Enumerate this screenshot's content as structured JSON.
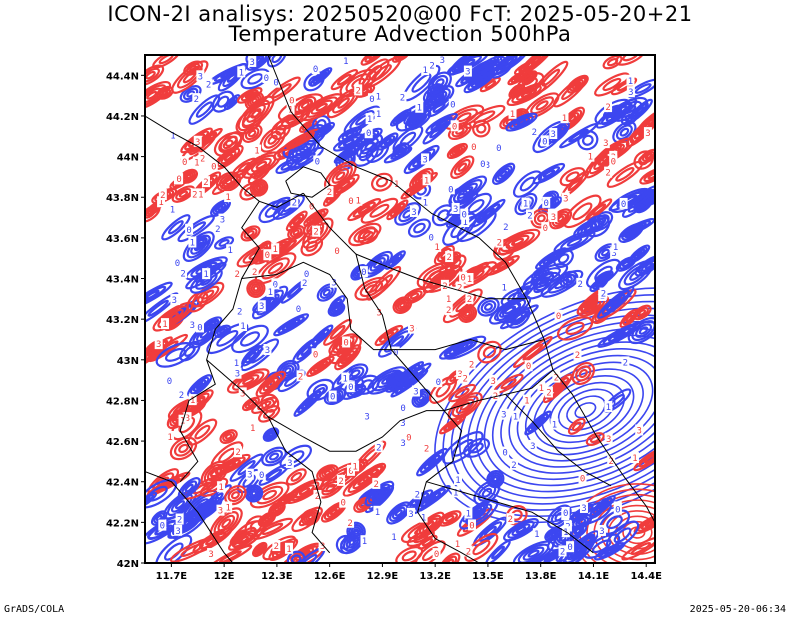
{
  "title": {
    "line1": "ICON-2I analisys: 20250520@00 FcT: 2025-05-20+21",
    "line2": "Temperature Advection 500hPa"
  },
  "map": {
    "lon_range": [
      11.55,
      14.45
    ],
    "lat_range": [
      42.0,
      44.5
    ],
    "lat_ticks": [
      "44.4N",
      "44.2N",
      "44N",
      "43.8N",
      "43.6N",
      "43.4N",
      "43.2N",
      "43N",
      "42.8N",
      "42.6N",
      "42.4N",
      "42.2N",
      "42N"
    ],
    "lat_tick_values": [
      44.4,
      44.2,
      44.0,
      43.8,
      43.6,
      43.4,
      43.2,
      43.0,
      42.8,
      42.6,
      42.4,
      42.2,
      42.0
    ],
    "lon_ticks": [
      "11.7E",
      "12E",
      "12.3E",
      "12.6E",
      "12.9E",
      "13.2E",
      "13.5E",
      "13.8E",
      "14.1E",
      "14.4E"
    ],
    "lon_tick_values": [
      11.7,
      12.0,
      12.3,
      12.6,
      12.9,
      13.2,
      13.5,
      13.8,
      14.1,
      14.4
    ],
    "colors": {
      "warm_advection": "#f03c3c",
      "cold_advection": "#3c46f0",
      "border": "#000000",
      "background": "#ffffff"
    },
    "contour_label_samples": [
      "0",
      "1",
      "2",
      "3",
      "5",
      "6",
      "9",
      "10"
    ]
  },
  "footer": {
    "left": "GrADS/COLA",
    "right": "2025-05-20-06:34"
  }
}
